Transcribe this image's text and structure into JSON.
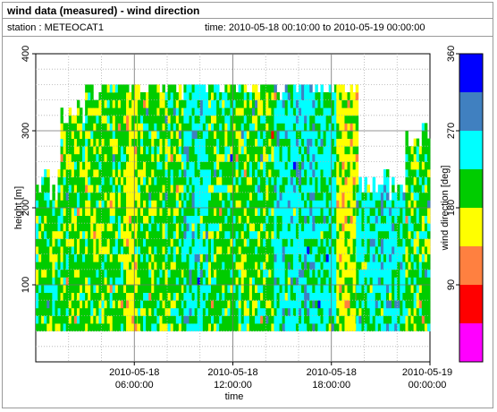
{
  "header": {
    "title": "wind data (measured) - wind direction",
    "station": "station : METEOCAT1",
    "time_range": "time: 2010-05-18 00:10:00 to 2010-05-19 00:00:00"
  },
  "chart_data": {
    "type": "heatmap",
    "xlabel": "time",
    "ylabel": "height [m]",
    "colorbar_label": "wind direction [deg]",
    "ylim": [
      0,
      400
    ],
    "yticks": [
      100,
      200,
      300,
      400
    ],
    "xlim_hours": [
      0,
      24
    ],
    "xticks": [
      {
        "hour": 6,
        "line1": "2010-05-18",
        "line2": "06:00:00"
      },
      {
        "hour": 12,
        "line1": "2010-05-18",
        "line2": "12:00:00"
      },
      {
        "hour": 18,
        "line1": "2010-05-18",
        "line2": "18:00:00"
      },
      {
        "hour": 24,
        "line1": "2010-05-19",
        "line2": "00:00:00"
      }
    ],
    "colorbar_ticks": [
      90,
      180,
      270,
      360
    ],
    "colorbar_range": [
      0,
      360
    ],
    "colorbar_bins": [
      {
        "from": 0,
        "to": 45,
        "color": "#ff00ff"
      },
      {
        "from": 45,
        "to": 90,
        "color": "#ff0000"
      },
      {
        "from": 90,
        "to": 135,
        "color": "#ff8040"
      },
      {
        "from": 135,
        "to": 180,
        "color": "#ffff00"
      },
      {
        "from": 180,
        "to": 225,
        "color": "#00cc00"
      },
      {
        "from": 225,
        "to": 270,
        "color": "#00ffff"
      },
      {
        "from": 270,
        "to": 315,
        "color": "#4080c0"
      },
      {
        "from": 315,
        "to": 360,
        "color": "#0000ff"
      }
    ],
    "grid": true,
    "height_bins_m": [
      40,
      360
    ],
    "time_step_min": 10,
    "segments": [
      {
        "from_h": 0.0,
        "to_h": 1.5,
        "top_m": 225,
        "dir_deg": 205
      },
      {
        "from_h": 1.5,
        "to_h": 3.0,
        "top_m": 320,
        "dir_deg": 200
      },
      {
        "from_h": 3.0,
        "to_h": 4.0,
        "top_m": 350,
        "dir_deg": 195
      },
      {
        "from_h": 4.0,
        "to_h": 5.5,
        "top_m": 365,
        "dir_deg": 200
      },
      {
        "from_h": 5.5,
        "to_h": 6.2,
        "top_m": 360,
        "dir_deg": 165
      },
      {
        "from_h": 6.2,
        "to_h": 9.0,
        "top_m": 355,
        "dir_deg": 200
      },
      {
        "from_h": 9.0,
        "to_h": 10.5,
        "top_m": 360,
        "dir_deg": 240
      },
      {
        "from_h": 10.5,
        "to_h": 12.5,
        "top_m": 365,
        "dir_deg": 205
      },
      {
        "from_h": 12.5,
        "to_h": 14.5,
        "top_m": 360,
        "dir_deg": 200
      },
      {
        "from_h": 14.5,
        "to_h": 15.5,
        "top_m": 360,
        "dir_deg": 240
      },
      {
        "from_h": 15.5,
        "to_h": 17.0,
        "top_m": 365,
        "dir_deg": 245
      },
      {
        "from_h": 17.0,
        "to_h": 18.3,
        "top_m": 360,
        "dir_deg": 235
      },
      {
        "from_h": 18.3,
        "to_h": 19.5,
        "top_m": 350,
        "dir_deg": 165
      },
      {
        "from_h": 19.5,
        "to_h": 20.5,
        "top_m": 230,
        "dir_deg": 230
      },
      {
        "from_h": 20.5,
        "to_h": 22.5,
        "top_m": 225,
        "dir_deg": 240
      },
      {
        "from_h": 22.5,
        "to_h": 24.0,
        "top_m": 290,
        "dir_deg": 205
      }
    ]
  }
}
